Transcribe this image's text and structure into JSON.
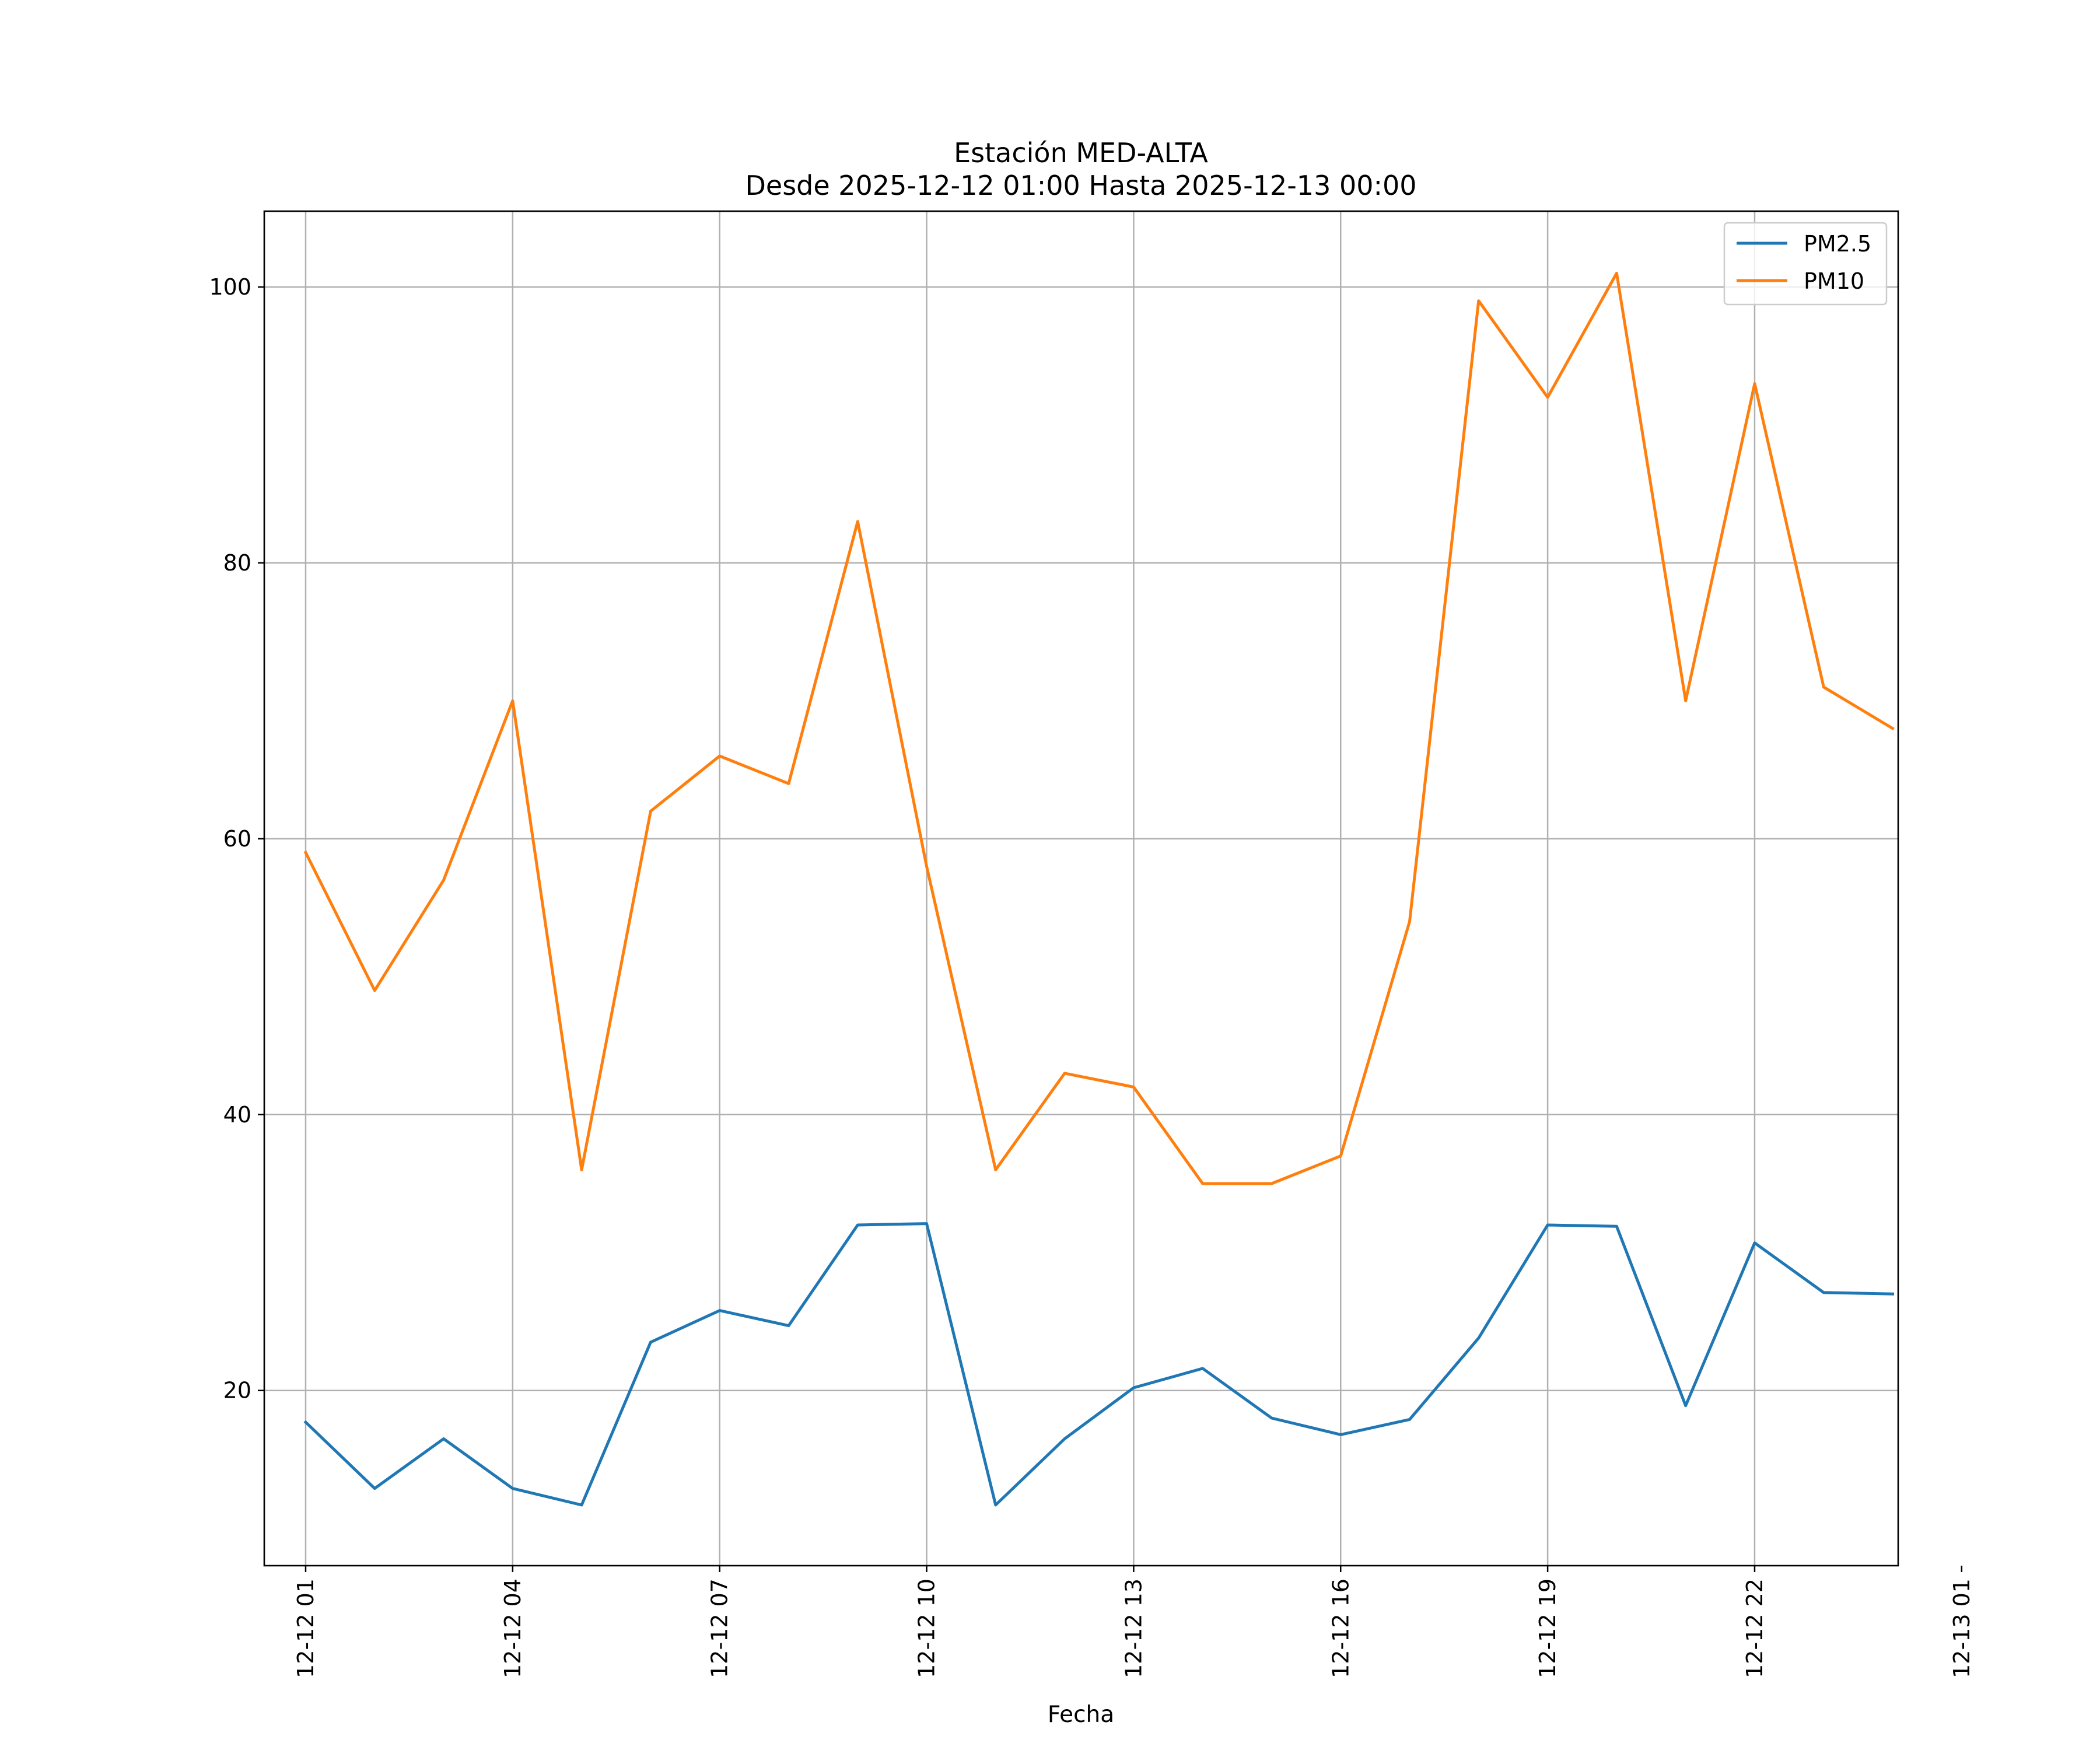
{
  "chart_data": {
    "type": "line",
    "title": "Estación MED-ALTA",
    "subtitle": "Desde 2025-12-12 01:00 Hasta 2025-12-13 00:00",
    "xlabel": "Fecha",
    "ylabel": "",
    "grid": true,
    "legend_position": "top-right",
    "x_unit": "hour",
    "xlim": [
      0.4,
      24.08
    ],
    "ylim": [
      7.3,
      105.5
    ],
    "x_ticks": [
      {
        "value": 1,
        "label": "12-12 01"
      },
      {
        "value": 4,
        "label": "12-12 04"
      },
      {
        "value": 7,
        "label": "12-12 07"
      },
      {
        "value": 10,
        "label": "12-12 10"
      },
      {
        "value": 13,
        "label": "12-12 13"
      },
      {
        "value": 16,
        "label": "12-12 16"
      },
      {
        "value": 19,
        "label": "12-12 19"
      },
      {
        "value": 22,
        "label": "12-12 22"
      },
      {
        "value": 25,
        "label": "12-13 01"
      }
    ],
    "y_ticks": [
      {
        "value": 20,
        "label": "20"
      },
      {
        "value": 40,
        "label": "40"
      },
      {
        "value": 60,
        "label": "60"
      },
      {
        "value": 80,
        "label": "80"
      },
      {
        "value": 100,
        "label": "100"
      }
    ],
    "x": [
      1,
      2,
      3,
      4,
      5,
      6,
      7,
      8,
      9,
      10,
      11,
      12,
      13,
      14,
      15,
      16,
      17,
      18,
      19,
      20,
      21,
      22,
      23,
      24
    ],
    "series": [
      {
        "name": "PM2.5",
        "color": "#1f77b4",
        "values": [
          17.7,
          12.9,
          16.5,
          12.9,
          11.7,
          23.5,
          25.8,
          24.7,
          32.0,
          32.1,
          11.7,
          16.5,
          20.2,
          21.6,
          18.0,
          16.8,
          17.9,
          23.8,
          32.0,
          31.9,
          18.9,
          30.7,
          27.1,
          27.0
        ]
      },
      {
        "name": "PM10",
        "color": "#ff7f0e",
        "values": [
          59,
          49,
          57,
          70,
          36,
          62,
          66,
          64,
          83,
          58,
          36,
          43,
          42,
          35,
          35,
          37,
          54,
          99,
          92,
          101,
          70,
          93,
          71,
          68
        ]
      }
    ]
  }
}
